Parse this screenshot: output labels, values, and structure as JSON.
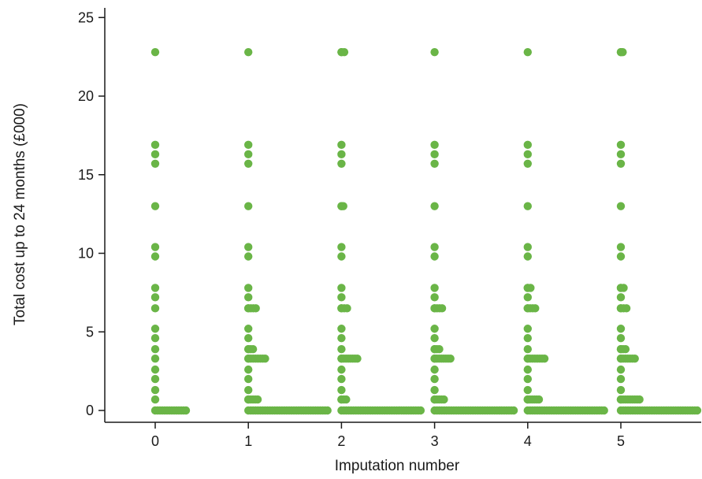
{
  "chart_data": {
    "type": "scatter",
    "title": "",
    "xlabel": "Imputation number",
    "ylabel": "Total cost up to 24 months (£000)",
    "xlim": [
      -0.55,
      5.85
    ],
    "ylim": [
      -0.8,
      25.5
    ],
    "x_ticks": [
      0,
      1,
      2,
      3,
      4,
      5
    ],
    "y_ticks": [
      0,
      5,
      10,
      15,
      20,
      25
    ],
    "grid": false,
    "legend": "none",
    "marker_color": "#6ab547",
    "point_offset_note": "jittered horizontally to the right of each imputation number",
    "series": [
      {
        "imputation": 0,
        "vertical_values": [
          22.8,
          16.9,
          16.3,
          15.7,
          13.0,
          10.4,
          9.8,
          7.8,
          7.2,
          6.5,
          5.2,
          4.6,
          3.9,
          3.3,
          2.6,
          2.0,
          1.3,
          0.7
        ],
        "zero_run": [
          0,
          0.33
        ],
        "extra_runs": []
      },
      {
        "imputation": 1,
        "vertical_values": [
          22.8,
          16.9,
          16.3,
          15.7,
          13.0,
          10.4,
          9.8,
          7.8,
          7.2,
          6.5,
          5.2,
          4.6,
          3.9,
          3.3,
          2.6,
          2.0,
          1.3,
          0.7
        ],
        "zero_run": [
          1,
          1.85
        ],
        "extra_runs": [
          {
            "y": 6.5,
            "x": [
              1.0,
              1.08
            ]
          },
          {
            "y": 3.9,
            "x": [
              1.0,
              1.05
            ]
          },
          {
            "y": 3.3,
            "x": [
              1.0,
              1.18
            ]
          },
          {
            "y": 0.7,
            "x": [
              1.0,
              1.1
            ]
          }
        ]
      },
      {
        "imputation": 2,
        "vertical_values": [
          22.8,
          16.9,
          16.3,
          15.7,
          13.0,
          10.4,
          9.8,
          7.8,
          7.2,
          6.5,
          5.2,
          4.6,
          3.9,
          3.3,
          2.6,
          2.0,
          1.3,
          0.7
        ],
        "zero_run": [
          2,
          2.85
        ],
        "extra_runs": [
          {
            "y": 22.8,
            "x": [
              2.0,
              2.03
            ]
          },
          {
            "y": 13.0,
            "x": [
              2.0,
              2.02
            ]
          },
          {
            "y": 6.5,
            "x": [
              2.0,
              2.06
            ]
          },
          {
            "y": 3.3,
            "x": [
              2.0,
              2.17
            ]
          },
          {
            "y": 0.7,
            "x": [
              2.0,
              2.05
            ]
          }
        ]
      },
      {
        "imputation": 3,
        "vertical_values": [
          22.8,
          16.9,
          16.3,
          15.7,
          13.0,
          10.4,
          9.8,
          7.8,
          7.2,
          6.5,
          5.2,
          4.6,
          3.9,
          3.3,
          2.6,
          2.0,
          1.3,
          0.7
        ],
        "zero_run": [
          3,
          3.85
        ],
        "extra_runs": [
          {
            "y": 6.5,
            "x": [
              3.0,
              3.08
            ]
          },
          {
            "y": 3.9,
            "x": [
              3.0,
              3.05
            ]
          },
          {
            "y": 3.3,
            "x": [
              3.0,
              3.17
            ]
          },
          {
            "y": 0.7,
            "x": [
              3.0,
              3.1
            ]
          }
        ]
      },
      {
        "imputation": 4,
        "vertical_values": [
          22.8,
          16.9,
          16.3,
          15.7,
          13.0,
          10.4,
          9.8,
          7.8,
          7.2,
          6.5,
          5.2,
          4.6,
          3.9,
          3.3,
          2.6,
          2.0,
          1.3,
          0.7
        ],
        "zero_run": [
          4,
          4.82
        ],
        "extra_runs": [
          {
            "y": 7.8,
            "x": [
              4.0,
              4.03
            ]
          },
          {
            "y": 6.5,
            "x": [
              4.0,
              4.08
            ]
          },
          {
            "y": 3.3,
            "x": [
              4.0,
              4.18
            ]
          },
          {
            "y": 0.7,
            "x": [
              4.0,
              4.12
            ]
          }
        ]
      },
      {
        "imputation": 5,
        "vertical_values": [
          22.8,
          16.9,
          16.3,
          15.7,
          13.0,
          10.4,
          9.8,
          7.8,
          7.2,
          6.5,
          5.2,
          4.6,
          3.9,
          3.3,
          2.6,
          2.0,
          1.3,
          0.7
        ],
        "zero_run": [
          5,
          5.82
        ],
        "extra_runs": [
          {
            "y": 22.8,
            "x": [
              5.0,
              5.02
            ]
          },
          {
            "y": 7.8,
            "x": [
              5.0,
              5.03
            ]
          },
          {
            "y": 6.5,
            "x": [
              5.0,
              5.06
            ]
          },
          {
            "y": 3.9,
            "x": [
              5.0,
              5.05
            ]
          },
          {
            "y": 3.3,
            "x": [
              5.0,
              5.15
            ]
          },
          {
            "y": 0.7,
            "x": [
              5.0,
              5.2
            ]
          }
        ]
      }
    ]
  }
}
